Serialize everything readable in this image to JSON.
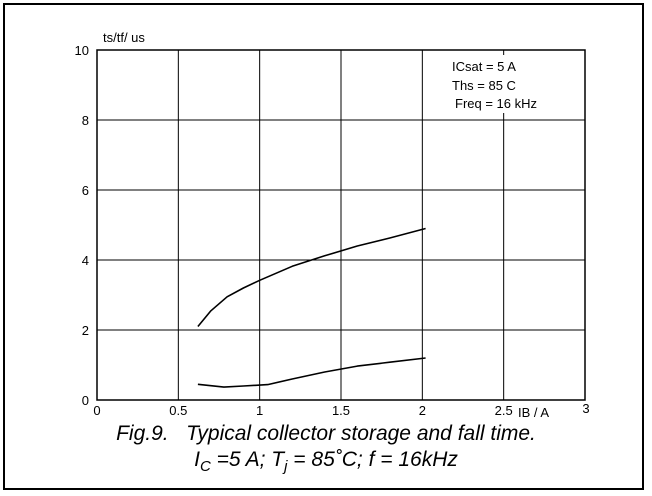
{
  "chart_data": {
    "type": "line",
    "ylabel": "ts/tf/ us",
    "xlabel": "IB / A",
    "xlim": [
      0,
      3
    ],
    "ylim": [
      0,
      10
    ],
    "x_ticks": [
      "0",
      "0.5",
      "1",
      "1.5",
      "2",
      "2.5",
      "3"
    ],
    "y_ticks": [
      "0",
      "2",
      "4",
      "6",
      "8",
      "10"
    ],
    "grid": true,
    "annotations": [
      "ICsat = 5 A",
      "Ths = 85 C",
      "Freq = 16 kHz"
    ],
    "series": [
      {
        "x": [
          0.62,
          0.7,
          0.8,
          0.9,
          1.0,
          1.2,
          1.4,
          1.6,
          1.8,
          2.02
        ],
        "y": [
          2.1,
          2.55,
          2.95,
          3.2,
          3.42,
          3.82,
          4.12,
          4.4,
          4.63,
          4.9
        ]
      },
      {
        "x": [
          0.62,
          0.78,
          0.9,
          1.05,
          1.2,
          1.4,
          1.6,
          1.8,
          2.02
        ],
        "y": [
          0.45,
          0.37,
          0.4,
          0.44,
          0.6,
          0.8,
          0.97,
          1.08,
          1.2
        ]
      }
    ]
  },
  "caption": {
    "line1": "Fig.9.   Typical collector storage and fall time.",
    "line2": {
      "ic_sym": "I",
      "ic_sub": "C",
      "ic_val": " =5 A; ",
      "tj_sym": "T",
      "tj_sub": "j",
      "rest": " = 85˚C; f = 16kHz"
    }
  }
}
